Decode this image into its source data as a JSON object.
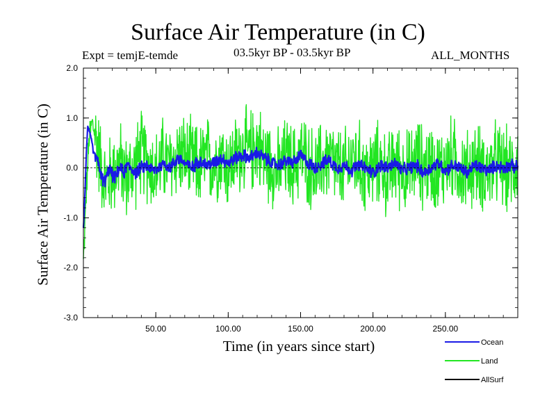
{
  "chart_data": {
    "type": "line",
    "title": "Surface Air Temperature (in C)",
    "subtitle_left": "Expt = temjE-temde",
    "subtitle_center": "03.5kyr BP - 03.5kyr BP",
    "subtitle_right": "ALL_MONTHS",
    "xlabel": "Time (in years since start)",
    "ylabel": "Surface Air Temperature (in C)",
    "xlim": [
      0,
      300
    ],
    "ylim": [
      -3.0,
      2.0
    ],
    "x_ticks": [
      50,
      100,
      150,
      200,
      250
    ],
    "x_tick_labels": [
      "50.00",
      "100.00",
      "150.00",
      "200.00",
      "250.00"
    ],
    "y_ticks": [
      2.0,
      1.0,
      0.0,
      -1.0,
      -2.0,
      -3.0
    ],
    "y_tick_labels": [
      "2.0",
      "1.0",
      "0.0",
      "-1.0",
      "-2.0",
      "-3.0"
    ],
    "zero_line": true,
    "series": [
      {
        "name": "Land",
        "color": "#22e622",
        "x": [
          0,
          2,
          4,
          6,
          8,
          10,
          12,
          15,
          20,
          25,
          30,
          35,
          40,
          45,
          50,
          55,
          60,
          65,
          70,
          75,
          80,
          85,
          90,
          95,
          100,
          105,
          110,
          115,
          120,
          125,
          130,
          135,
          140,
          145,
          150,
          155,
          160,
          165,
          170,
          175,
          180,
          185,
          190,
          195,
          200,
          205,
          210,
          215,
          220,
          225,
          230,
          235,
          240,
          245,
          250,
          255,
          260,
          265,
          270,
          275,
          280,
          285,
          290,
          295,
          300
        ],
        "values": [
          -1.9,
          -0.5,
          0.6,
          0.9,
          0.7,
          0.4,
          0.1,
          -0.3,
          -0.1,
          0.1,
          -0.2,
          0.0,
          0.3,
          0.1,
          -0.1,
          0.2,
          0.0,
          0.3,
          0.2,
          0.1,
          0.0,
          0.2,
          0.1,
          0.3,
          0.0,
          0.2,
          0.4,
          0.3,
          0.5,
          0.2,
          0.1,
          -0.1,
          0.2,
          0.0,
          0.3,
          0.1,
          -0.1,
          0.1,
          0.2,
          0.0,
          -0.1,
          0.2,
          0.1,
          -0.1,
          0.0,
          0.1,
          -0.2,
          0.1,
          0.0,
          -0.1,
          0.2,
          0.0,
          0.1,
          -0.1,
          0.1,
          0.2,
          0.0,
          -0.1,
          0.1,
          0.0,
          -0.1,
          0.1,
          0.0,
          -0.1,
          0.2
        ],
        "variability": 1.0
      },
      {
        "name": "Ocean",
        "color": "#1a1ae6",
        "x": [
          0,
          1,
          2,
          3,
          4,
          5,
          6,
          7,
          8,
          9,
          10,
          11,
          12,
          14,
          16,
          18,
          20,
          22,
          25,
          28,
          30,
          33,
          36,
          40,
          44,
          48,
          52,
          56,
          60,
          65,
          70,
          75,
          80,
          85,
          90,
          95,
          100,
          105,
          110,
          115,
          120,
          125,
          130,
          135,
          140,
          145,
          150,
          155,
          160,
          165,
          170,
          175,
          180,
          185,
          190,
          195,
          200,
          205,
          210,
          215,
          220,
          225,
          230,
          235,
          240,
          245,
          250,
          255,
          260,
          265,
          270,
          275,
          280,
          285,
          290,
          295,
          300
        ],
        "values": [
          -1.2,
          -0.6,
          0.3,
          0.8,
          0.75,
          0.6,
          0.5,
          0.3,
          0.25,
          0.2,
          0.1,
          0.0,
          -0.1,
          -0.3,
          -0.2,
          0.0,
          -0.15,
          -0.2,
          0.0,
          -0.1,
          0.05,
          0.0,
          -0.1,
          0.0,
          0.05,
          -0.05,
          0.0,
          0.1,
          0.0,
          0.2,
          0.1,
          0.0,
          0.15,
          0.05,
          0.1,
          0.2,
          0.1,
          0.2,
          0.25,
          0.2,
          0.3,
          0.2,
          0.1,
          0.05,
          0.15,
          0.1,
          0.25,
          0.1,
          0.0,
          0.1,
          0.15,
          0.0,
          0.05,
          -0.05,
          0.05,
          0.0,
          -0.1,
          0.05,
          0.0,
          0.1,
          -0.05,
          0.0,
          0.05,
          -0.1,
          0.0,
          0.1,
          -0.05,
          0.05,
          0.0,
          -0.1,
          0.05,
          0.0,
          -0.05,
          0.05,
          0.0,
          0.05,
          0.0
        ],
        "variability": 0.15
      },
      {
        "name": "AllSurf",
        "color": "#000000",
        "x": [],
        "values": []
      }
    ],
    "legend": [
      "Ocean",
      "Land",
      "AllSurf"
    ],
    "legend_position": "bottom-right"
  }
}
